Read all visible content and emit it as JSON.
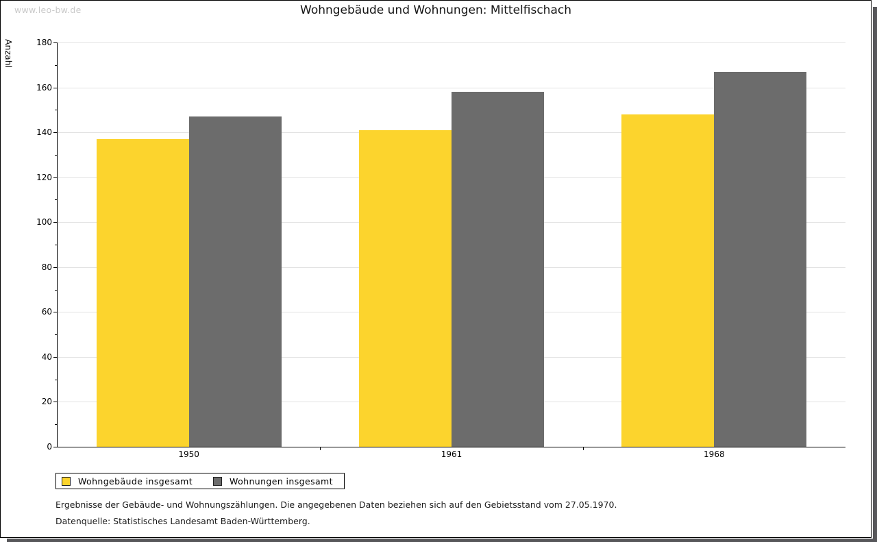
{
  "watermark": "www.leo-bw.de",
  "title": "Wohngebäude und Wohnungen: Mittelfischach",
  "chart_data": {
    "type": "bar",
    "title": "Wohngebäude und Wohnungen: Mittelfischach",
    "xlabel": "",
    "ylabel": "Anzahl",
    "categories": [
      "1950",
      "1961",
      "1968"
    ],
    "series": [
      {
        "name": "Wohngebäude insgesamt",
        "color": "#fcd42d",
        "values": [
          137,
          141,
          148
        ]
      },
      {
        "name": "Wohnungen insgesamt",
        "color": "#6c6c6c",
        "values": [
          147,
          158,
          167
        ]
      }
    ],
    "ylim": [
      0,
      180
    ],
    "y_major_step": 20,
    "y_minor_step": 10,
    "grid": true,
    "gridline_color": "#e2e2e2",
    "legend_position": "bottom-left"
  },
  "footer": {
    "line1": "Ergebnisse der Gebäude- und Wohnungszählungen. Die angegebenen Daten beziehen sich auf den Gebietsstand vom 27.05.1970.",
    "line2": "Datenquelle: Statistisches Landesamt Baden-Württemberg."
  }
}
